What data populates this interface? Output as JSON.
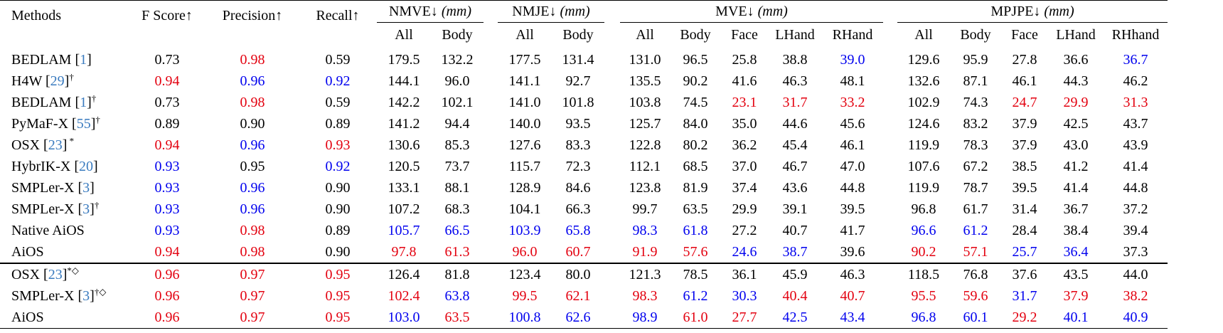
{
  "header": {
    "methods": "Methods",
    "fscore": "F Score↑",
    "precision": "Precision↑",
    "recall": "Recall↑",
    "groups": [
      {
        "name": "NMVE↓",
        "unit": "(mm)",
        "cols": [
          "All",
          "Body"
        ]
      },
      {
        "name": "NMJE↓",
        "unit": "(mm)",
        "cols": [
          "All",
          "Body"
        ]
      },
      {
        "name": "MVE↓",
        "unit": "(mm)",
        "cols": [
          "All",
          "Body",
          "Face",
          "LHand",
          "RHand"
        ]
      },
      {
        "name": "MPJPE↓",
        "unit": "(mm)",
        "cols": [
          "All",
          "Body",
          "Face",
          "LHand",
          "RHhand"
        ]
      }
    ]
  },
  "colors": {
    "best": "#e3000f",
    "second": "#0000ee",
    "ref": "#3a7bbf"
  },
  "rows": [
    {
      "name": "BEDLAM ",
      "ref": "1",
      "mark": "",
      "c": [
        [
          "0.73",
          "k"
        ],
        [
          "0.98",
          "r"
        ],
        [
          "0.59",
          "k"
        ],
        [
          "179.5",
          "k"
        ],
        [
          "132.2",
          "k"
        ],
        [
          "177.5",
          "k"
        ],
        [
          "131.4",
          "k"
        ],
        [
          "131.0",
          "k"
        ],
        [
          "96.5",
          "k"
        ],
        [
          "25.8",
          "k"
        ],
        [
          "38.8",
          "k"
        ],
        [
          "39.0",
          "b"
        ],
        [
          "129.6",
          "k"
        ],
        [
          "95.9",
          "k"
        ],
        [
          "27.8",
          "k"
        ],
        [
          "36.6",
          "k"
        ],
        [
          "36.7",
          "b"
        ]
      ]
    },
    {
      "name": "H4W ",
      "ref": "29",
      "mark": "†",
      "c": [
        [
          "0.94",
          "r"
        ],
        [
          "0.96",
          "b"
        ],
        [
          "0.92",
          "b"
        ],
        [
          "144.1",
          "k"
        ],
        [
          "96.0",
          "k"
        ],
        [
          "141.1",
          "k"
        ],
        [
          "92.7",
          "k"
        ],
        [
          "135.5",
          "k"
        ],
        [
          "90.2",
          "k"
        ],
        [
          "41.6",
          "k"
        ],
        [
          "46.3",
          "k"
        ],
        [
          "48.1",
          "k"
        ],
        [
          "132.6",
          "k"
        ],
        [
          "87.1",
          "k"
        ],
        [
          "46.1",
          "k"
        ],
        [
          "44.3",
          "k"
        ],
        [
          "46.2",
          "k"
        ]
      ]
    },
    {
      "name": "BEDLAM ",
      "ref": "1",
      "mark": "†",
      "c": [
        [
          "0.73",
          "k"
        ],
        [
          "0.98",
          "r"
        ],
        [
          "0.59",
          "k"
        ],
        [
          "142.2",
          "k"
        ],
        [
          "102.1",
          "k"
        ],
        [
          "141.0",
          "k"
        ],
        [
          "101.8",
          "k"
        ],
        [
          "103.8",
          "k"
        ],
        [
          "74.5",
          "k"
        ],
        [
          "23.1",
          "r"
        ],
        [
          "31.7",
          "r"
        ],
        [
          "33.2",
          "r"
        ],
        [
          "102.9",
          "k"
        ],
        [
          "74.3",
          "k"
        ],
        [
          "24.7",
          "r"
        ],
        [
          "29.9",
          "r"
        ],
        [
          "31.3",
          "r"
        ]
      ]
    },
    {
      "name": "PyMaF-X ",
      "ref": "55",
      "mark": "†",
      "c": [
        [
          "0.89",
          "k"
        ],
        [
          "0.90",
          "k"
        ],
        [
          "0.89",
          "k"
        ],
        [
          "141.2",
          "k"
        ],
        [
          "94.4",
          "k"
        ],
        [
          "140.0",
          "k"
        ],
        [
          "93.5",
          "k"
        ],
        [
          "125.7",
          "k"
        ],
        [
          "84.0",
          "k"
        ],
        [
          "35.0",
          "k"
        ],
        [
          "44.6",
          "k"
        ],
        [
          "45.6",
          "k"
        ],
        [
          "124.6",
          "k"
        ],
        [
          "83.2",
          "k"
        ],
        [
          "37.9",
          "k"
        ],
        [
          "42.5",
          "k"
        ],
        [
          "43.7",
          "k"
        ]
      ]
    },
    {
      "name": "OSX ",
      "ref": "23",
      "mark": " *",
      "c": [
        [
          "0.94",
          "r"
        ],
        [
          "0.96",
          "b"
        ],
        [
          "0.93",
          "r"
        ],
        [
          "130.6",
          "k"
        ],
        [
          "85.3",
          "k"
        ],
        [
          "127.6",
          "k"
        ],
        [
          "83.3",
          "k"
        ],
        [
          "122.8",
          "k"
        ],
        [
          "80.2",
          "k"
        ],
        [
          "36.2",
          "k"
        ],
        [
          "45.4",
          "k"
        ],
        [
          "46.1",
          "k"
        ],
        [
          "119.9",
          "k"
        ],
        [
          "78.3",
          "k"
        ],
        [
          "37.9",
          "k"
        ],
        [
          "43.0",
          "k"
        ],
        [
          "43.9",
          "k"
        ]
      ]
    },
    {
      "name": "HybrIK-X ",
      "ref": "20",
      "mark": "",
      "c": [
        [
          "0.93",
          "b"
        ],
        [
          "0.95",
          "k"
        ],
        [
          "0.92",
          "b"
        ],
        [
          "120.5",
          "k"
        ],
        [
          "73.7",
          "k"
        ],
        [
          "115.7",
          "k"
        ],
        [
          "72.3",
          "k"
        ],
        [
          "112.1",
          "k"
        ],
        [
          "68.5",
          "k"
        ],
        [
          "37.0",
          "k"
        ],
        [
          "46.7",
          "k"
        ],
        [
          "47.0",
          "k"
        ],
        [
          "107.6",
          "k"
        ],
        [
          "67.2",
          "k"
        ],
        [
          "38.5",
          "k"
        ],
        [
          "41.2",
          "k"
        ],
        [
          "41.4",
          "k"
        ]
      ]
    },
    {
      "name": "SMPLer-X ",
      "ref": "3",
      "mark": "",
      "c": [
        [
          "0.93",
          "b"
        ],
        [
          "0.96",
          "b"
        ],
        [
          "0.90",
          "k"
        ],
        [
          "133.1",
          "k"
        ],
        [
          "88.1",
          "k"
        ],
        [
          "128.9",
          "k"
        ],
        [
          "84.6",
          "k"
        ],
        [
          "123.8",
          "k"
        ],
        [
          "81.9",
          "k"
        ],
        [
          "37.4",
          "k"
        ],
        [
          "43.6",
          "k"
        ],
        [
          "44.8",
          "k"
        ],
        [
          "119.9",
          "k"
        ],
        [
          "78.7",
          "k"
        ],
        [
          "39.5",
          "k"
        ],
        [
          "41.4",
          "k"
        ],
        [
          "44.8",
          "k"
        ]
      ]
    },
    {
      "name": "SMPLer-X ",
      "ref": "3",
      "mark": "†",
      "c": [
        [
          "0.93",
          "b"
        ],
        [
          "0.96",
          "b"
        ],
        [
          "0.90",
          "k"
        ],
        [
          "107.2",
          "k"
        ],
        [
          "68.3",
          "k"
        ],
        [
          "104.1",
          "k"
        ],
        [
          "66.3",
          "k"
        ],
        [
          "99.7",
          "k"
        ],
        [
          "63.5",
          "k"
        ],
        [
          "29.9",
          "k"
        ],
        [
          "39.1",
          "k"
        ],
        [
          "39.5",
          "k"
        ],
        [
          "96.8",
          "k"
        ],
        [
          "61.7",
          "k"
        ],
        [
          "31.4",
          "k"
        ],
        [
          "36.7",
          "k"
        ],
        [
          "37.2",
          "k"
        ]
      ]
    },
    {
      "name": "Native AiOS",
      "ref": "",
      "mark": "",
      "c": [
        [
          "0.93",
          "b"
        ],
        [
          "0.98",
          "r"
        ],
        [
          "0.89",
          "k"
        ],
        [
          "105.7",
          "b"
        ],
        [
          "66.5",
          "b"
        ],
        [
          "103.9",
          "b"
        ],
        [
          "65.8",
          "b"
        ],
        [
          "98.3",
          "b"
        ],
        [
          "61.8",
          "b"
        ],
        [
          "27.2",
          "k"
        ],
        [
          "40.7",
          "k"
        ],
        [
          "41.7",
          "k"
        ],
        [
          "96.6",
          "b"
        ],
        [
          "61.2",
          "b"
        ],
        [
          "28.4",
          "k"
        ],
        [
          "38.4",
          "k"
        ],
        [
          "39.4",
          "k"
        ]
      ]
    },
    {
      "name": "AiOS",
      "ref": "",
      "mark": "",
      "c": [
        [
          "0.94",
          "r"
        ],
        [
          "0.98",
          "r"
        ],
        [
          "0.90",
          "k"
        ],
        [
          "97.8",
          "r"
        ],
        [
          "61.3",
          "r"
        ],
        [
          "96.0",
          "r"
        ],
        [
          "60.7",
          "r"
        ],
        [
          "91.9",
          "r"
        ],
        [
          "57.6",
          "r"
        ],
        [
          "24.6",
          "b"
        ],
        [
          "38.7",
          "b"
        ],
        [
          "39.6",
          "k"
        ],
        [
          "90.2",
          "r"
        ],
        [
          "57.1",
          "r"
        ],
        [
          "25.7",
          "b"
        ],
        [
          "36.4",
          "b"
        ],
        [
          "37.3",
          "k"
        ]
      ]
    }
  ],
  "rows2": [
    {
      "name": "OSX ",
      "ref": "23",
      "mark": "*◇",
      "c": [
        [
          "0.96",
          "r"
        ],
        [
          "0.97",
          "r"
        ],
        [
          "0.95",
          "r"
        ],
        [
          "126.4",
          "k"
        ],
        [
          "81.8",
          "k"
        ],
        [
          "123.4",
          "k"
        ],
        [
          "80.0",
          "k"
        ],
        [
          "121.3",
          "k"
        ],
        [
          "78.5",
          "k"
        ],
        [
          "36.1",
          "k"
        ],
        [
          "45.9",
          "k"
        ],
        [
          "46.3",
          "k"
        ],
        [
          "118.5",
          "k"
        ],
        [
          "76.8",
          "k"
        ],
        [
          "37.6",
          "k"
        ],
        [
          "43.5",
          "k"
        ],
        [
          "44.0",
          "k"
        ]
      ]
    },
    {
      "name": "SMPLer-X ",
      "ref": "3",
      "mark": "†◇",
      "c": [
        [
          "0.96",
          "r"
        ],
        [
          "0.97",
          "r"
        ],
        [
          "0.95",
          "r"
        ],
        [
          "102.4",
          "r"
        ],
        [
          "63.8",
          "b"
        ],
        [
          "99.5",
          "r"
        ],
        [
          "62.1",
          "r"
        ],
        [
          "98.3",
          "r"
        ],
        [
          "61.2",
          "b"
        ],
        [
          "30.3",
          "b"
        ],
        [
          "40.4",
          "r"
        ],
        [
          "40.7",
          "r"
        ],
        [
          "95.5",
          "r"
        ],
        [
          "59.6",
          "r"
        ],
        [
          "31.7",
          "b"
        ],
        [
          "37.9",
          "r"
        ],
        [
          "38.2",
          "r"
        ]
      ]
    },
    {
      "name": "AiOS",
      "ref": "",
      "mark": "",
      "c": [
        [
          "0.96",
          "r"
        ],
        [
          "0.97",
          "r"
        ],
        [
          "0.95",
          "r"
        ],
        [
          "103.0",
          "b"
        ],
        [
          "63.5",
          "r"
        ],
        [
          "100.8",
          "b"
        ],
        [
          "62.6",
          "b"
        ],
        [
          "98.9",
          "b"
        ],
        [
          "61.0",
          "r"
        ],
        [
          "27.7",
          "r"
        ],
        [
          "42.5",
          "b"
        ],
        [
          "43.4",
          "b"
        ],
        [
          "96.8",
          "b"
        ],
        [
          "60.1",
          "b"
        ],
        [
          "29.2",
          "r"
        ],
        [
          "40.1",
          "b"
        ],
        [
          "40.9",
          "b"
        ]
      ]
    }
  ]
}
